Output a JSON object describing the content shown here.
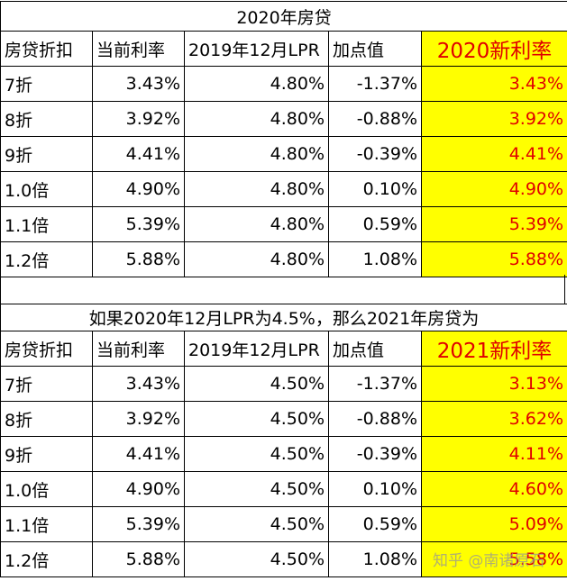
{
  "table1": {
    "title": "2020年房贷",
    "headers": [
      "房贷折扣",
      "当前利率",
      "2019年12月LPR",
      "加点值",
      "2020新利率"
    ],
    "rows": [
      [
        "7折",
        "3.43%",
        "4.80%",
        "-1.37%",
        "3.43%"
      ],
      [
        "8折",
        "3.92%",
        "4.80%",
        "-0.88%",
        "3.92%"
      ],
      [
        "9折",
        "4.41%",
        "4.80%",
        "-0.39%",
        "4.41%"
      ],
      [
        "1.0倍",
        "4.90%",
        "4.80%",
        "0.10%",
        "4.90%"
      ],
      [
        "1.1倍",
        "5.39%",
        "4.80%",
        "0.59%",
        "5.39%"
      ],
      [
        "1.2倍",
        "5.88%",
        "4.80%",
        "1.08%",
        "5.88%"
      ]
    ]
  },
  "table2": {
    "title": "如果2020年12月LPR为4.5%，那么2021年房贷为",
    "headers": [
      "房贷折扣",
      "当前利率",
      "2019年12月LPR",
      "加点值",
      "2021新利率"
    ],
    "rows": [
      [
        "7折",
        "3.43%",
        "4.50%",
        "-1.37%",
        "3.13%"
      ],
      [
        "8折",
        "3.92%",
        "4.50%",
        "-0.88%",
        "3.62%"
      ],
      [
        "9折",
        "4.41%",
        "4.50%",
        "-0.39%",
        "4.11%"
      ],
      [
        "1.0倍",
        "4.90%",
        "4.50%",
        "0.10%",
        "4.60%"
      ],
      [
        "1.1倍",
        "5.39%",
        "4.50%",
        "0.59%",
        "5.09%"
      ],
      [
        "1.2倍",
        "5.88%",
        "4.50%",
        "1.08%",
        "5.58%"
      ]
    ]
  },
  "watermark": "知乎 @南诸原石",
  "colors": {
    "highlight_bg": "#ffff00",
    "highlight_text": "#e00000"
  }
}
